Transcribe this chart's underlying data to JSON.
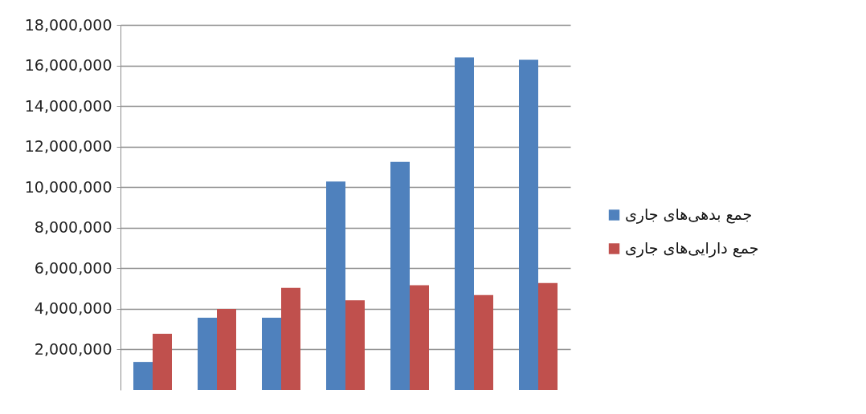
{
  "chart_data": {
    "type": "bar",
    "categories": [
      null,
      null,
      null,
      null,
      null,
      null,
      null
    ],
    "series": [
      {
        "name": "جمع بدهی‌های جاری",
        "color": "#4f81bd",
        "values": [
          1380000,
          3560000,
          3560000,
          10280000,
          11250000,
          16400000,
          16280000
        ]
      },
      {
        "name": "جمع دارایی‌های جاری",
        "color": "#c0504d",
        "values": [
          2770000,
          4000000,
          5030000,
          4420000,
          5160000,
          4680000,
          5270000
        ]
      }
    ],
    "ylim": [
      0,
      18000000
    ],
    "yticks": [
      {
        "value": 2000000,
        "label": "2,000,000"
      },
      {
        "value": 4000000,
        "label": "4,000,000"
      },
      {
        "value": 6000000,
        "label": "6,000,000"
      },
      {
        "value": 8000000,
        "label": "8,000,000"
      },
      {
        "value": 10000000,
        "label": "10,000,000"
      },
      {
        "value": 12000000,
        "label": "12,000,000"
      },
      {
        "value": 14000000,
        "label": "14,000,000"
      },
      {
        "value": 16000000,
        "label": "16,000,000"
      },
      {
        "value": 18000000,
        "label": "18,000,000"
      }
    ],
    "grid": "y",
    "legend": "right"
  }
}
